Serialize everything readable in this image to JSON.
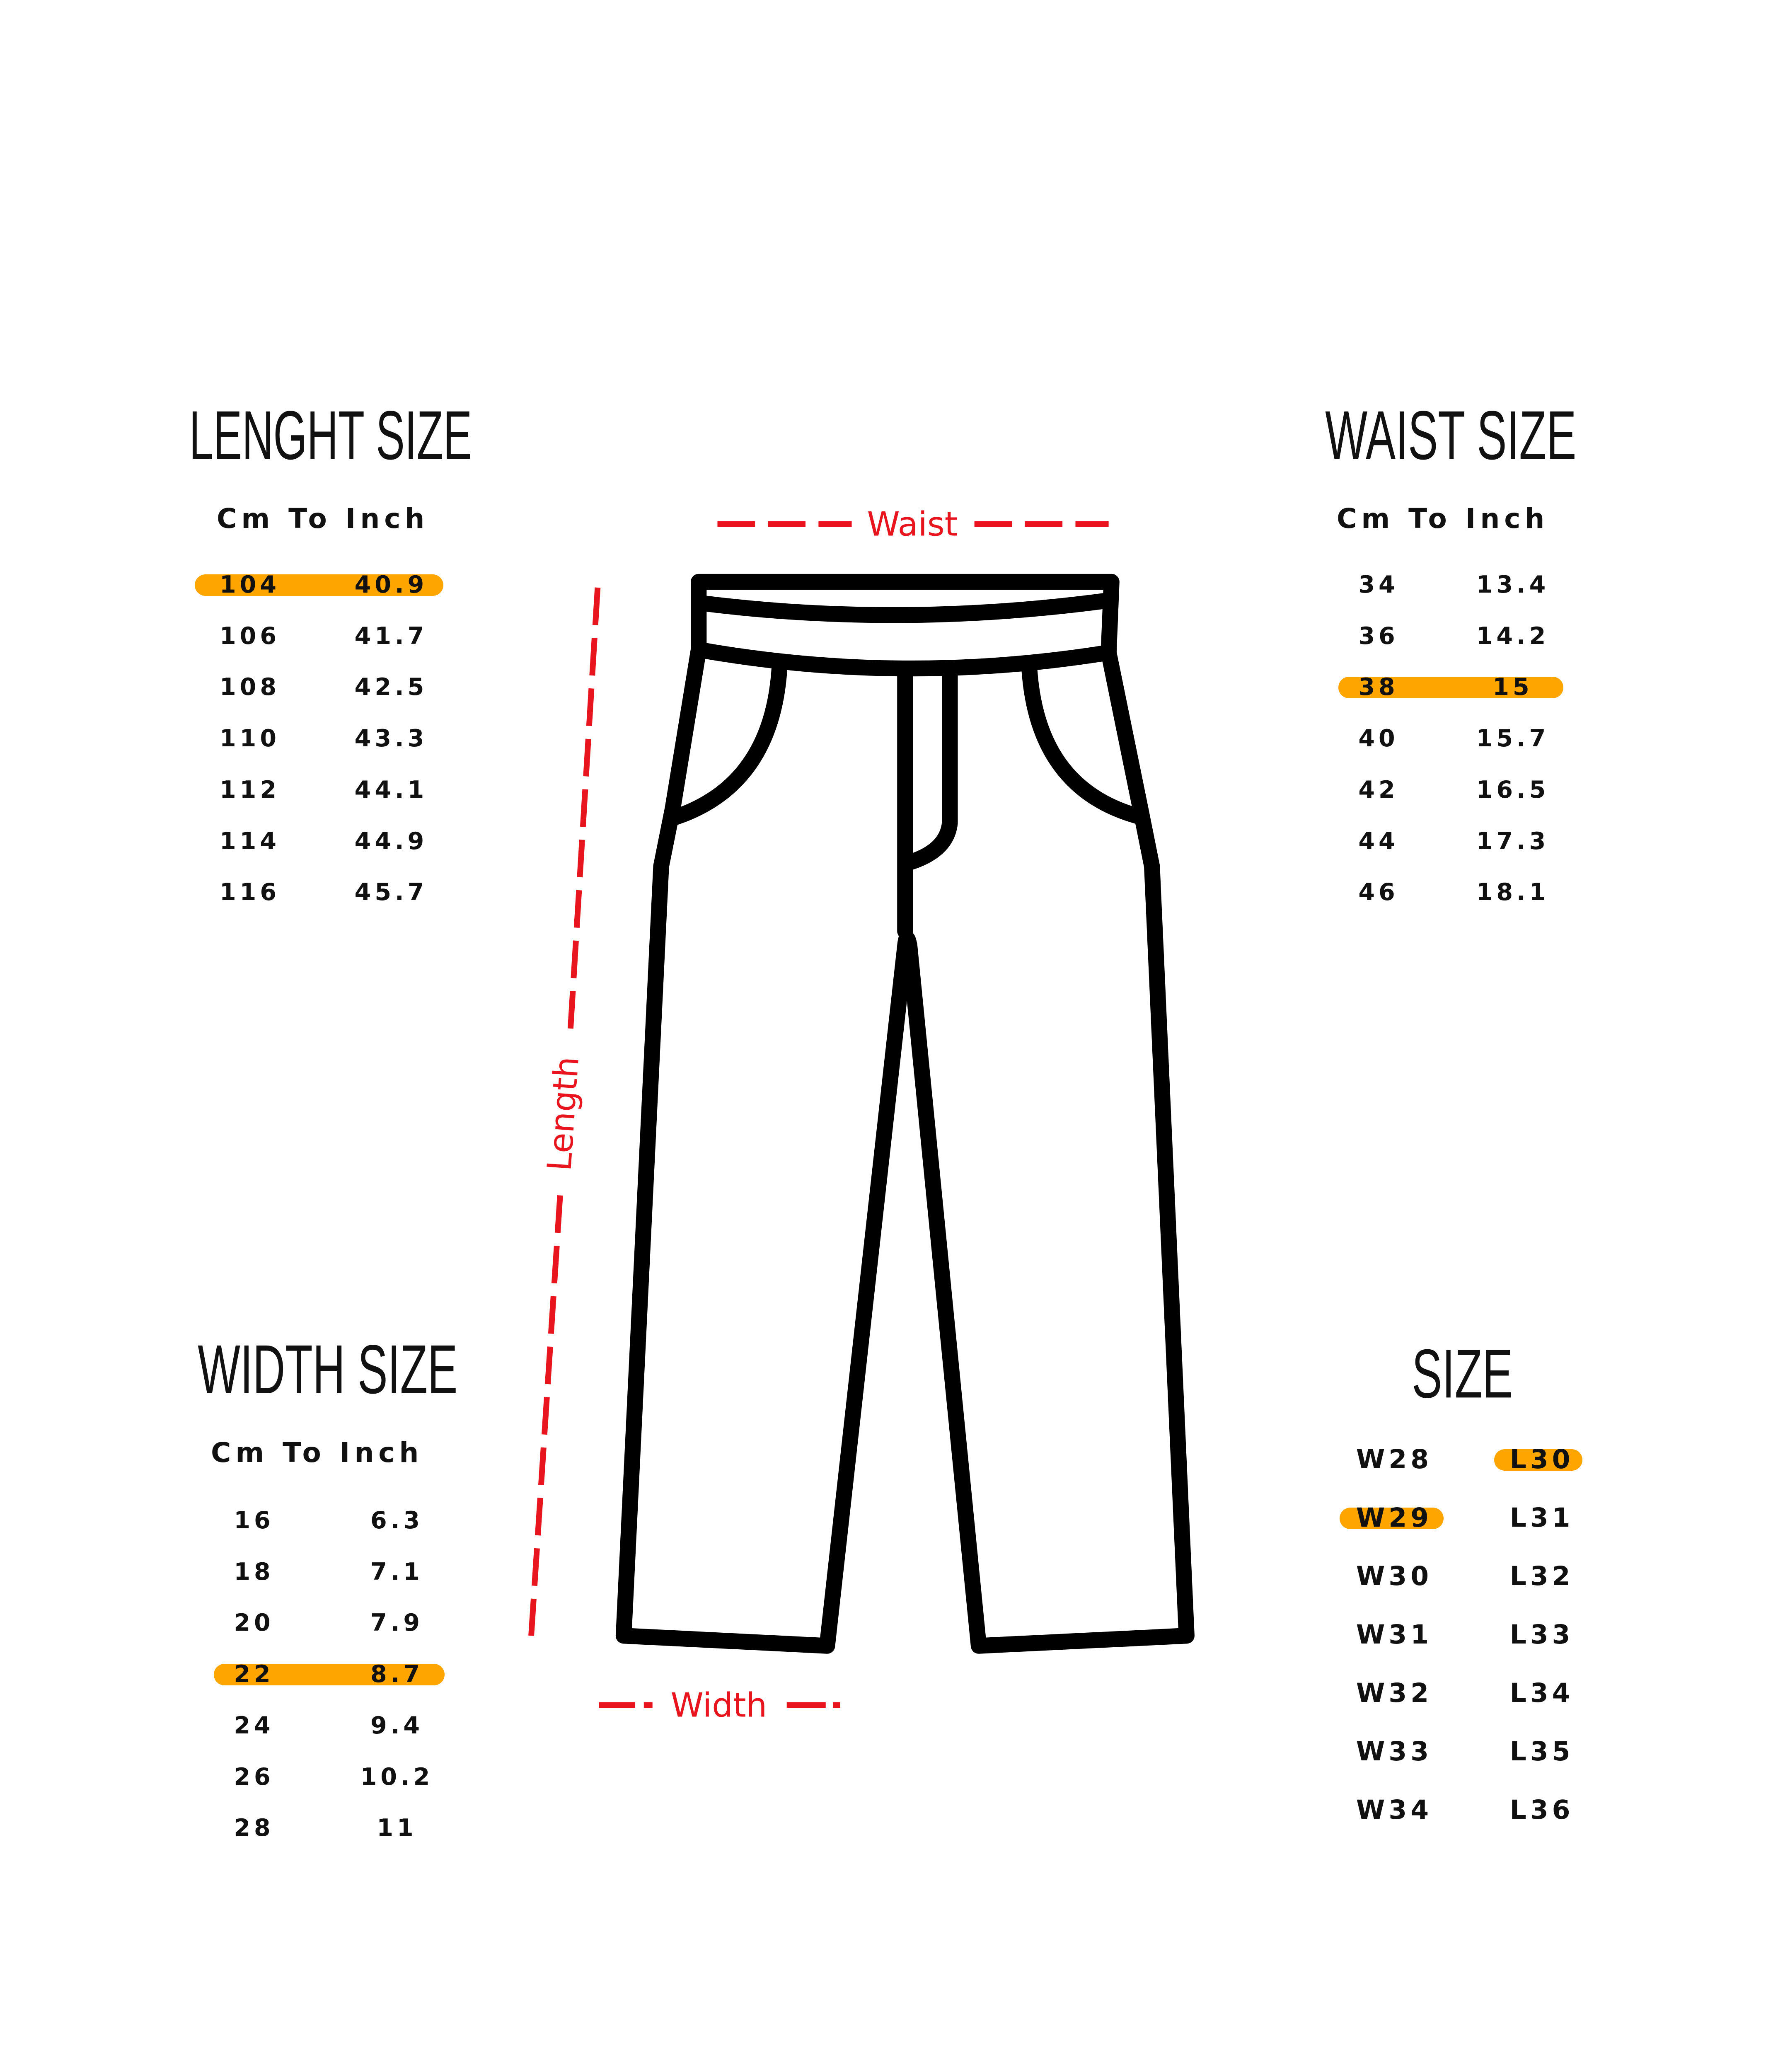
{
  "colors": {
    "highlight": "#FFA500",
    "measure_line": "#E8141E",
    "text": "#111111"
  },
  "length_size": {
    "title": "LENGHT SIZE",
    "subtitle": "Cm To Inch",
    "rows": [
      {
        "cm": "104",
        "inch": "40.9",
        "highlight": true
      },
      {
        "cm": "106",
        "inch": "41.7"
      },
      {
        "cm": "108",
        "inch": "42.5"
      },
      {
        "cm": "110",
        "inch": "43.3"
      },
      {
        "cm": "112",
        "inch": "44.1"
      },
      {
        "cm": "114",
        "inch": "44.9"
      },
      {
        "cm": "116",
        "inch": "45.7"
      }
    ]
  },
  "waist_size": {
    "title": "WAIST SIZE",
    "subtitle": "Cm To Inch",
    "rows": [
      {
        "cm": "34",
        "inch": "13.4"
      },
      {
        "cm": "36",
        "inch": "14.2"
      },
      {
        "cm": "38",
        "inch": "15",
        "highlight": true
      },
      {
        "cm": "40",
        "inch": "15.7"
      },
      {
        "cm": "42",
        "inch": "16.5"
      },
      {
        "cm": "44",
        "inch": "17.3"
      },
      {
        "cm": "46",
        "inch": "18.1"
      }
    ]
  },
  "width_size": {
    "title": "WIDTH SIZE",
    "subtitle": "Cm To Inch",
    "rows": [
      {
        "cm": "16",
        "inch": "6.3"
      },
      {
        "cm": "18",
        "inch": "7.1"
      },
      {
        "cm": "20",
        "inch": "7.9"
      },
      {
        "cm": "22",
        "inch": "8.7",
        "highlight": true
      },
      {
        "cm": "24",
        "inch": "9.4"
      },
      {
        "cm": "26",
        "inch": "10.2"
      },
      {
        "cm": "28",
        "inch": "11"
      }
    ]
  },
  "size": {
    "title": "SIZE",
    "rows": [
      {
        "w": "W28",
        "l": "L30",
        "l_highlight": true
      },
      {
        "w": "W29",
        "l": "L31",
        "w_highlight": true
      },
      {
        "w": "W30",
        "l": "L32"
      },
      {
        "w": "W31",
        "l": "L33"
      },
      {
        "w": "W32",
        "l": "L34"
      },
      {
        "w": "W33",
        "l": "L35"
      },
      {
        "w": "W34",
        "l": "L36"
      }
    ]
  },
  "diagram": {
    "waist_label": "Waist",
    "length_label": "Length",
    "width_label": "Width",
    "icon": "pants-icon"
  }
}
